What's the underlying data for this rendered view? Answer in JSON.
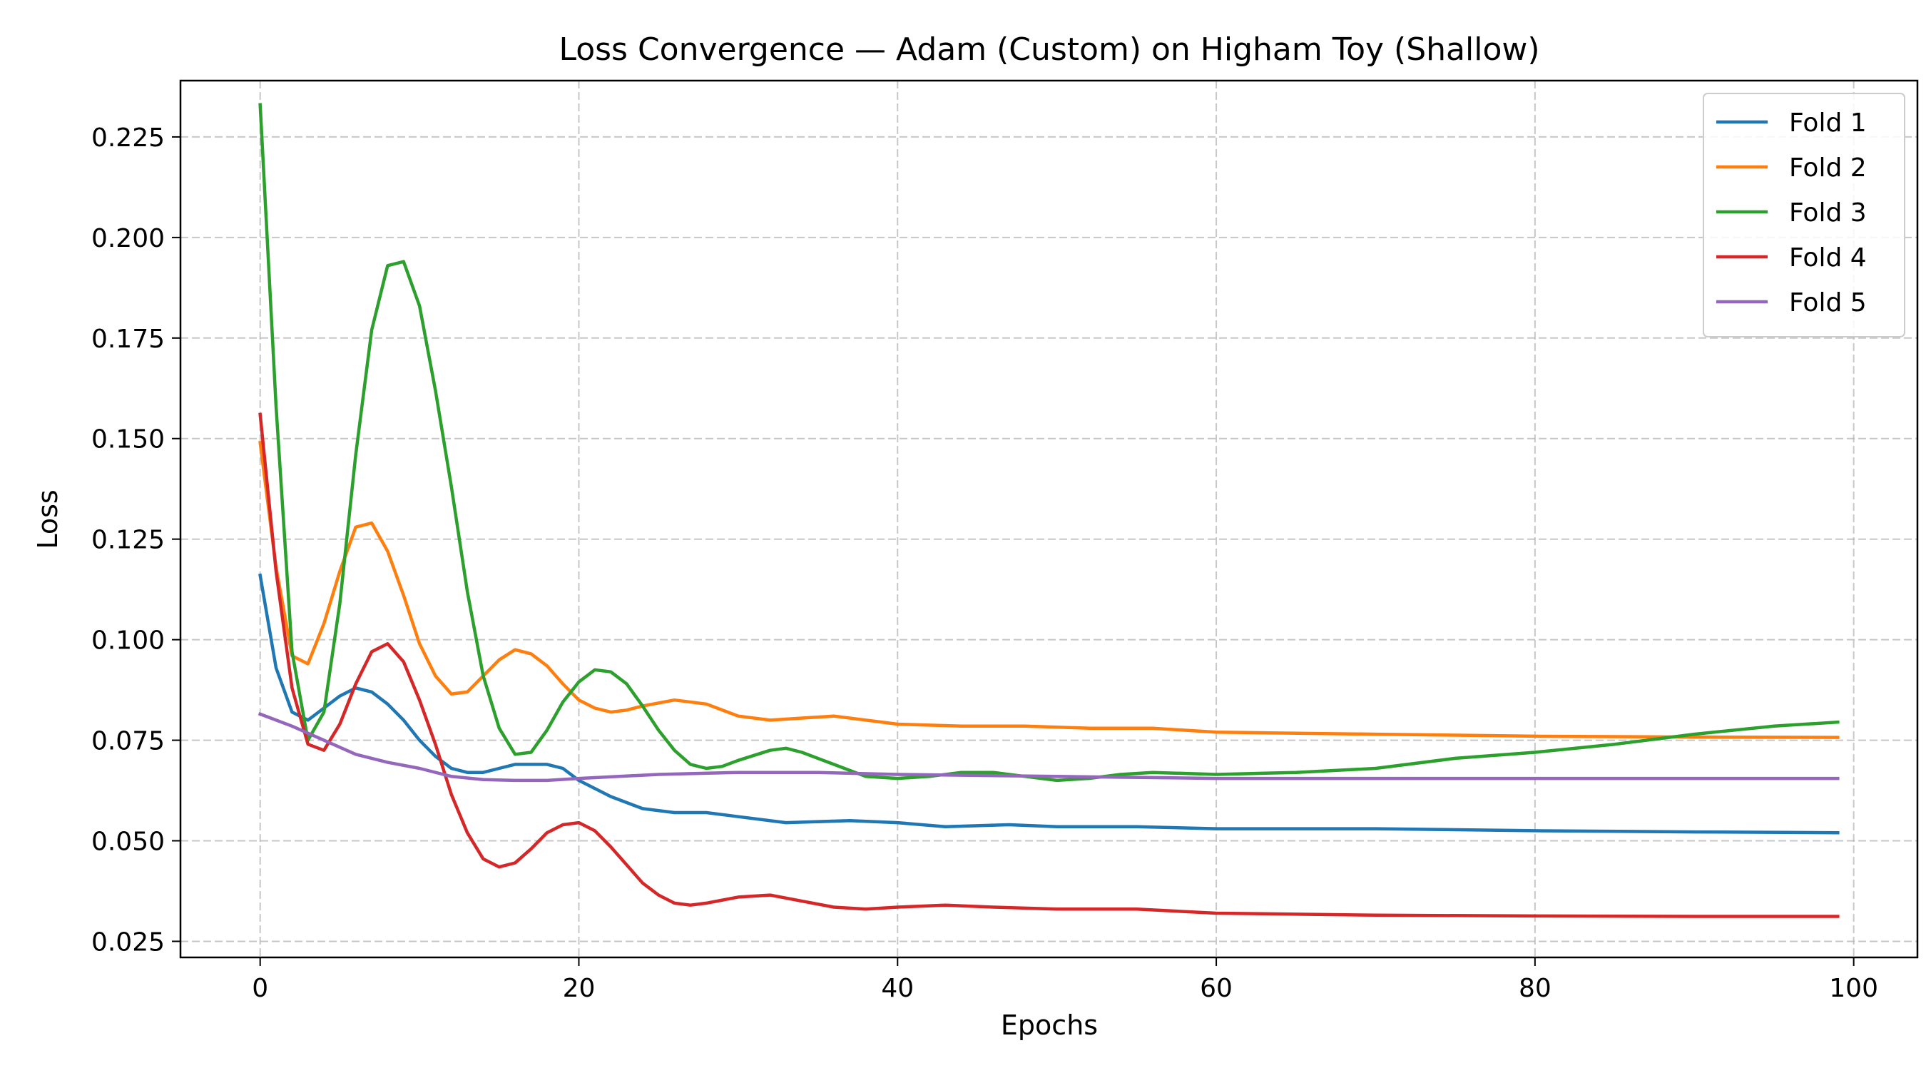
{
  "chart_data": {
    "type": "line",
    "title": "Loss Convergence — Adam (Custom) on Higham Toy (Shallow)",
    "xlabel": "Epochs",
    "ylabel": "Loss",
    "xlim": [
      -5,
      104
    ],
    "ylim": [
      0.021,
      0.239
    ],
    "x_ticks": [
      0,
      20,
      40,
      60,
      80,
      100
    ],
    "x_tick_labels": [
      "0",
      "20",
      "40",
      "60",
      "80",
      "100"
    ],
    "y_ticks": [
      0.025,
      0.05,
      0.075,
      0.1,
      0.125,
      0.15,
      0.175,
      0.2,
      0.225
    ],
    "y_tick_labels": [
      "0.025",
      "0.050",
      "0.075",
      "0.100",
      "0.125",
      "0.150",
      "0.175",
      "0.200",
      "0.225"
    ],
    "grid": true,
    "legend_position": "top-right",
    "series": [
      {
        "name": "Fold 1",
        "color": "#1f77b4",
        "points": [
          [
            0,
            0.116
          ],
          [
            1,
            0.093
          ],
          [
            2,
            0.082
          ],
          [
            3,
            0.08
          ],
          [
            4,
            0.083
          ],
          [
            5,
            0.086
          ],
          [
            6,
            0.088
          ],
          [
            7,
            0.087
          ],
          [
            8,
            0.084
          ],
          [
            9,
            0.08
          ],
          [
            10,
            0.075
          ],
          [
            11,
            0.071
          ],
          [
            12,
            0.068
          ],
          [
            13,
            0.067
          ],
          [
            14,
            0.067
          ],
          [
            15,
            0.068
          ],
          [
            16,
            0.069
          ],
          [
            17,
            0.069
          ],
          [
            18,
            0.069
          ],
          [
            19,
            0.068
          ],
          [
            20,
            0.065
          ],
          [
            22,
            0.061
          ],
          [
            24,
            0.058
          ],
          [
            26,
            0.057
          ],
          [
            28,
            0.057
          ],
          [
            30,
            0.056
          ],
          [
            33,
            0.0545
          ],
          [
            37,
            0.055
          ],
          [
            40,
            0.0545
          ],
          [
            43,
            0.0535
          ],
          [
            47,
            0.054
          ],
          [
            50,
            0.0535
          ],
          [
            55,
            0.0535
          ],
          [
            60,
            0.053
          ],
          [
            70,
            0.053
          ],
          [
            80,
            0.0525
          ],
          [
            90,
            0.0522
          ],
          [
            99,
            0.052
          ]
        ]
      },
      {
        "name": "Fold 2",
        "color": "#ff7f0e",
        "points": [
          [
            0,
            0.149
          ],
          [
            1,
            0.118
          ],
          [
            2,
            0.096
          ],
          [
            3,
            0.094
          ],
          [
            4,
            0.104
          ],
          [
            5,
            0.117
          ],
          [
            6,
            0.128
          ],
          [
            7,
            0.129
          ],
          [
            8,
            0.122
          ],
          [
            9,
            0.111
          ],
          [
            10,
            0.099
          ],
          [
            11,
            0.091
          ],
          [
            12,
            0.0865
          ],
          [
            13,
            0.087
          ],
          [
            14,
            0.091
          ],
          [
            15,
            0.095
          ],
          [
            16,
            0.0975
          ],
          [
            17,
            0.0965
          ],
          [
            18,
            0.0935
          ],
          [
            19,
            0.089
          ],
          [
            20,
            0.085
          ],
          [
            21,
            0.083
          ],
          [
            22,
            0.082
          ],
          [
            23,
            0.0825
          ],
          [
            24,
            0.0835
          ],
          [
            26,
            0.085
          ],
          [
            28,
            0.084
          ],
          [
            30,
            0.081
          ],
          [
            32,
            0.08
          ],
          [
            36,
            0.081
          ],
          [
            40,
            0.079
          ],
          [
            44,
            0.0785
          ],
          [
            48,
            0.0785
          ],
          [
            52,
            0.078
          ],
          [
            56,
            0.078
          ],
          [
            60,
            0.077
          ],
          [
            70,
            0.0765
          ],
          [
            80,
            0.076
          ],
          [
            90,
            0.0758
          ],
          [
            99,
            0.0757
          ]
        ]
      },
      {
        "name": "Fold 3",
        "color": "#2ca02c",
        "points": [
          [
            0,
            0.233
          ],
          [
            1,
            0.158
          ],
          [
            2,
            0.097
          ],
          [
            3,
            0.075
          ],
          [
            4,
            0.082
          ],
          [
            5,
            0.109
          ],
          [
            6,
            0.146
          ],
          [
            7,
            0.177
          ],
          [
            8,
            0.193
          ],
          [
            9,
            0.194
          ],
          [
            10,
            0.183
          ],
          [
            11,
            0.162
          ],
          [
            12,
            0.138
          ],
          [
            13,
            0.112
          ],
          [
            14,
            0.091
          ],
          [
            15,
            0.078
          ],
          [
            16,
            0.0715
          ],
          [
            17,
            0.072
          ],
          [
            18,
            0.0775
          ],
          [
            19,
            0.0845
          ],
          [
            20,
            0.0895
          ],
          [
            21,
            0.0925
          ],
          [
            22,
            0.092
          ],
          [
            23,
            0.089
          ],
          [
            24,
            0.0835
          ],
          [
            25,
            0.0775
          ],
          [
            26,
            0.0725
          ],
          [
            27,
            0.069
          ],
          [
            28,
            0.068
          ],
          [
            29,
            0.0685
          ],
          [
            30,
            0.07
          ],
          [
            32,
            0.0725
          ],
          [
            33,
            0.073
          ],
          [
            34,
            0.072
          ],
          [
            36,
            0.069
          ],
          [
            38,
            0.066
          ],
          [
            40,
            0.0655
          ],
          [
            42,
            0.066
          ],
          [
            44,
            0.067
          ],
          [
            46,
            0.067
          ],
          [
            48,
            0.066
          ],
          [
            50,
            0.065
          ],
          [
            52,
            0.0655
          ],
          [
            54,
            0.0665
          ],
          [
            56,
            0.067
          ],
          [
            60,
            0.0665
          ],
          [
            65,
            0.067
          ],
          [
            70,
            0.068
          ],
          [
            75,
            0.0705
          ],
          [
            80,
            0.072
          ],
          [
            85,
            0.074
          ],
          [
            90,
            0.0765
          ],
          [
            95,
            0.0785
          ],
          [
            99,
            0.0795
          ]
        ]
      },
      {
        "name": "Fold 4",
        "color": "#d62728",
        "points": [
          [
            0,
            0.156
          ],
          [
            1,
            0.117
          ],
          [
            2,
            0.088
          ],
          [
            3,
            0.074
          ],
          [
            4,
            0.0725
          ],
          [
            5,
            0.079
          ],
          [
            6,
            0.089
          ],
          [
            7,
            0.097
          ],
          [
            8,
            0.099
          ],
          [
            9,
            0.0945
          ],
          [
            10,
            0.085
          ],
          [
            11,
            0.074
          ],
          [
            12,
            0.0615
          ],
          [
            13,
            0.052
          ],
          [
            14,
            0.0455
          ],
          [
            15,
            0.0435
          ],
          [
            16,
            0.0445
          ],
          [
            17,
            0.048
          ],
          [
            18,
            0.052
          ],
          [
            19,
            0.054
          ],
          [
            20,
            0.0545
          ],
          [
            21,
            0.0525
          ],
          [
            22,
            0.0485
          ],
          [
            23,
            0.044
          ],
          [
            24,
            0.0395
          ],
          [
            25,
            0.0365
          ],
          [
            26,
            0.0345
          ],
          [
            27,
            0.034
          ],
          [
            28,
            0.0345
          ],
          [
            30,
            0.036
          ],
          [
            32,
            0.0365
          ],
          [
            34,
            0.035
          ],
          [
            36,
            0.0335
          ],
          [
            38,
            0.033
          ],
          [
            40,
            0.0335
          ],
          [
            43,
            0.034
          ],
          [
            46,
            0.0335
          ],
          [
            50,
            0.033
          ],
          [
            55,
            0.033
          ],
          [
            60,
            0.032
          ],
          [
            70,
            0.0315
          ],
          [
            80,
            0.0313
          ],
          [
            90,
            0.0312
          ],
          [
            99,
            0.0312
          ]
        ]
      },
      {
        "name": "Fold 5",
        "color": "#9467bd",
        "points": [
          [
            0,
            0.0815
          ],
          [
            2,
            0.0785
          ],
          [
            4,
            0.075
          ],
          [
            6,
            0.0715
          ],
          [
            8,
            0.0695
          ],
          [
            10,
            0.068
          ],
          [
            12,
            0.066
          ],
          [
            14,
            0.0652
          ],
          [
            16,
            0.065
          ],
          [
            18,
            0.065
          ],
          [
            20,
            0.0655
          ],
          [
            25,
            0.0665
          ],
          [
            30,
            0.067
          ],
          [
            35,
            0.067
          ],
          [
            40,
            0.0665
          ],
          [
            50,
            0.066
          ],
          [
            60,
            0.0655
          ],
          [
            70,
            0.0655
          ],
          [
            80,
            0.0655
          ],
          [
            90,
            0.0655
          ],
          [
            99,
            0.0655
          ]
        ]
      }
    ]
  }
}
